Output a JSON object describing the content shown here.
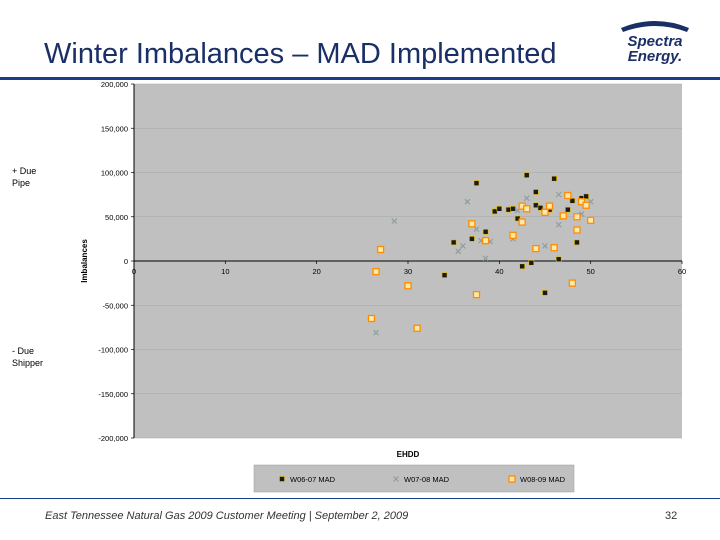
{
  "slide": {
    "title": "Winter Imbalances – MAD Implemented",
    "logo_line1": "Spectra",
    "logo_line2": "Energy.",
    "left_label_top_line1": "+ Due",
    "left_label_top_line2": "Pipe",
    "left_label_bottom_line1": "- Due",
    "left_label_bottom_line2": "Shipper",
    "footer": "East Tennessee Natural Gas 2009 Customer Meeting | September 2, 2009",
    "page_number": "32"
  },
  "colors": {
    "title": "#1a2f66",
    "plot_bg": "#c0c0c0",
    "series1": "#1a1a1a",
    "series2": "#8aa0a0",
    "series3": "#ff8c00"
  },
  "chart_data": {
    "type": "scatter",
    "title": "",
    "xlabel": "EHDD",
    "ylabel": "Imbalances",
    "xlim": [
      0,
      60
    ],
    "ylim": [
      -200000,
      200000
    ],
    "x_ticks": [
      0,
      10,
      20,
      30,
      40,
      50,
      60
    ],
    "x_tick_labels": [
      "0",
      "10",
      "20",
      "30",
      "40",
      "50",
      "60"
    ],
    "y_ticks": [
      -200000,
      -150000,
      -100000,
      -50000,
      0,
      50000,
      100000,
      150000,
      200000
    ],
    "y_tick_labels": [
      "-200,000",
      "-150,000",
      "-100,000",
      "-50,000",
      "0",
      "50,000",
      "100,000",
      "150,000",
      "200,000"
    ],
    "legend_position": "bottom",
    "series": [
      {
        "name": "W06-07 MAD",
        "marker": "square",
        "points": [
          [
            34,
            -16000
          ],
          [
            35,
            21000
          ],
          [
            37,
            25000
          ],
          [
            37.5,
            88000
          ],
          [
            38.5,
            33000
          ],
          [
            39.5,
            56000
          ],
          [
            40,
            59000
          ],
          [
            41,
            58000
          ],
          [
            41.5,
            59000
          ],
          [
            42,
            48000
          ],
          [
            42.5,
            -6000
          ],
          [
            43,
            97000
          ],
          [
            43.5,
            -2000
          ],
          [
            44,
            78000
          ],
          [
            44,
            63000
          ],
          [
            44.5,
            60000
          ],
          [
            45,
            -36000
          ],
          [
            45.5,
            58000
          ],
          [
            46,
            93000
          ],
          [
            46.5,
            2000
          ],
          [
            47.5,
            58000
          ],
          [
            48,
            68000
          ],
          [
            49,
            71000
          ],
          [
            49.5,
            73000
          ],
          [
            48.5,
            21000
          ]
        ]
      },
      {
        "name": "W07-08 MAD",
        "marker": "x",
        "points": [
          [
            26.5,
            -81000
          ],
          [
            28.5,
            45000
          ],
          [
            35.5,
            11000
          ],
          [
            36,
            17000
          ],
          [
            36.5,
            67000
          ],
          [
            37.5,
            36000
          ],
          [
            38,
            23000
          ],
          [
            38.5,
            3000
          ],
          [
            39,
            22000
          ],
          [
            42,
            57000
          ],
          [
            43,
            71000
          ],
          [
            45,
            17000
          ],
          [
            46.5,
            41000
          ],
          [
            46.5,
            75000
          ],
          [
            49,
            53000
          ],
          [
            50,
            67000
          ],
          [
            41.5,
            25000
          ]
        ]
      },
      {
        "name": "W08-09 MAD",
        "marker": "square-open",
        "points": [
          [
            26,
            -65000
          ],
          [
            26.5,
            -12000
          ],
          [
            27,
            13000
          ],
          [
            30,
            -28000
          ],
          [
            31,
            -76000
          ],
          [
            37,
            42000
          ],
          [
            37.5,
            -38000
          ],
          [
            38.5,
            23000
          ],
          [
            41.5,
            29000
          ],
          [
            42.5,
            44000
          ],
          [
            42.5,
            62000
          ],
          [
            43,
            59000
          ],
          [
            44,
            14000
          ],
          [
            45,
            55000
          ],
          [
            45.5,
            62000
          ],
          [
            46,
            15000
          ],
          [
            47,
            51000
          ],
          [
            47.5,
            74000
          ],
          [
            48,
            -25000
          ],
          [
            48.5,
            50000
          ],
          [
            49,
            67000
          ],
          [
            49.5,
            63000
          ],
          [
            50,
            46000
          ],
          [
            48.5,
            35000
          ]
        ]
      }
    ]
  }
}
